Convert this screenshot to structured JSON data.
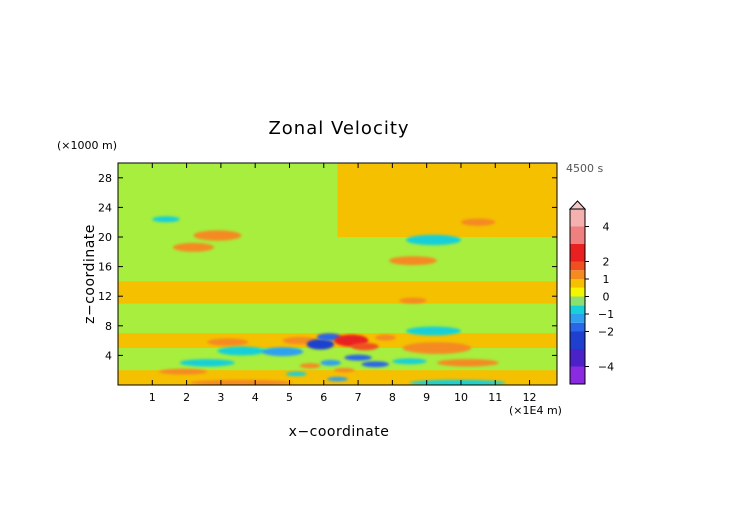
{
  "chart_data": {
    "type": "heatmap",
    "title": "Zonal Velocity",
    "xlabel": "x−coordinate",
    "ylabel": "z−coordinate",
    "x_unit_label": "(×1E4 m)",
    "y_unit_label": "(×1000 m)",
    "time_label": "4500 s",
    "xlim": [
      0,
      12.8
    ],
    "ylim": [
      0,
      30
    ],
    "x_ticks": [
      1,
      2,
      3,
      4,
      5,
      6,
      7,
      8,
      9,
      10,
      11,
      12
    ],
    "y_ticks": [
      4,
      8,
      12,
      16,
      20,
      24,
      28
    ],
    "grid": false,
    "legend_placement": "right",
    "colorbar": {
      "tick_labels": [
        "4",
        "2",
        "1",
        "0",
        "−1",
        "−2",
        "−4"
      ],
      "tick_values": [
        4,
        2,
        1,
        0,
        -1,
        -2,
        -4
      ],
      "levels": [
        -5,
        -4,
        -3,
        -2,
        -1.5,
        -1,
        -0.5,
        0,
        0.5,
        1,
        1.5,
        2,
        3,
        4,
        5
      ],
      "colors": [
        "#8a2be2",
        "#4b22c8",
        "#1f3fd0",
        "#2a66e8",
        "#2fa0f0",
        "#18d0d8",
        "#8ce070",
        "#f5f500",
        "#f5c000",
        "#f58a20",
        "#f05020",
        "#e82020",
        "#f08080",
        "#f5b0b0"
      ]
    },
    "background_level": 0.2,
    "background_color": "#a7ee3e",
    "features": [
      {
        "kind": "band",
        "x": [
          0,
          12.8
        ],
        "y": [
          0,
          2
        ],
        "value": 0.6
      },
      {
        "kind": "band",
        "x": [
          0,
          12.8
        ],
        "y": [
          11,
          14
        ],
        "value": 0.6
      },
      {
        "kind": "band",
        "x": [
          0,
          12.8
        ],
        "y": [
          5,
          7
        ],
        "value": 0.6
      },
      {
        "kind": "region",
        "x": [
          6.4,
          12.8
        ],
        "y": [
          20,
          30
        ],
        "value": 0.6
      },
      {
        "kind": "blob",
        "cx": 1.9,
        "cz": 1.8,
        "rx": 0.7,
        "rz": 0.4,
        "value": 1.2
      },
      {
        "kind": "blob",
        "cx": 3.6,
        "cz": 0.3,
        "rx": 1.5,
        "rz": 0.4,
        "value": 1.0
      },
      {
        "kind": "blob",
        "cx": 9.9,
        "cz": 0.3,
        "rx": 1.4,
        "rz": 0.4,
        "value": -0.8
      },
      {
        "kind": "blob",
        "cx": 2.6,
        "cz": 3.0,
        "rx": 0.8,
        "rz": 0.5,
        "value": -0.9
      },
      {
        "kind": "blob",
        "cx": 3.2,
        "cz": 5.8,
        "rx": 0.6,
        "rz": 0.5,
        "value": 1.0
      },
      {
        "kind": "blob",
        "cx": 3.6,
        "cz": 4.6,
        "rx": 0.7,
        "rz": 0.6,
        "value": -1.0
      },
      {
        "kind": "blob",
        "cx": 2.2,
        "cz": 18.6,
        "rx": 0.6,
        "rz": 0.6,
        "value": 1.0
      },
      {
        "kind": "blob",
        "cx": 2.9,
        "cz": 20.2,
        "rx": 0.7,
        "rz": 0.7,
        "value": 1.0
      },
      {
        "kind": "blob",
        "cx": 1.4,
        "cz": 22.4,
        "rx": 0.4,
        "rz": 0.4,
        "value": -0.8
      },
      {
        "kind": "blob",
        "cx": 10.5,
        "cz": 22.0,
        "rx": 0.5,
        "rz": 0.5,
        "value": 1.0
      },
      {
        "kind": "blob",
        "cx": 9.2,
        "cz": 19.6,
        "rx": 0.8,
        "rz": 0.7,
        "value": -0.8
      },
      {
        "kind": "blob",
        "cx": 8.6,
        "cz": 16.8,
        "rx": 0.7,
        "rz": 0.6,
        "value": 1.0
      },
      {
        "kind": "blob",
        "cx": 8.6,
        "cz": 11.4,
        "rx": 0.4,
        "rz": 0.4,
        "value": 1.0
      },
      {
        "kind": "blob",
        "cx": 9.2,
        "cz": 7.3,
        "rx": 0.8,
        "rz": 0.6,
        "value": -1.0
      },
      {
        "kind": "blob",
        "cx": 9.3,
        "cz": 5.0,
        "rx": 1.0,
        "rz": 0.8,
        "value": 1.1
      },
      {
        "kind": "blob",
        "cx": 10.2,
        "cz": 3.0,
        "rx": 0.9,
        "rz": 0.5,
        "value": 1.0
      },
      {
        "kind": "blob",
        "cx": 8.5,
        "cz": 3.2,
        "rx": 0.5,
        "rz": 0.4,
        "value": -0.8
      },
      {
        "kind": "blob",
        "cx": 4.8,
        "cz": 4.5,
        "rx": 0.6,
        "rz": 0.6,
        "value": -1.2
      },
      {
        "kind": "blob",
        "cx": 5.3,
        "cz": 6.0,
        "rx": 0.5,
        "rz": 0.5,
        "value": 1.2
      },
      {
        "kind": "blob",
        "cx": 5.9,
        "cz": 5.5,
        "rx": 0.4,
        "rz": 0.7,
        "value": -2.2
      },
      {
        "kind": "blob",
        "cx": 6.15,
        "cz": 6.5,
        "rx": 0.35,
        "rz": 0.5,
        "value": -1.6
      },
      {
        "kind": "blob",
        "cx": 6.8,
        "cz": 6.0,
        "rx": 0.5,
        "rz": 0.8,
        "value": 2.2
      },
      {
        "kind": "blob",
        "cx": 7.2,
        "cz": 5.2,
        "rx": 0.4,
        "rz": 0.5,
        "value": 1.5
      },
      {
        "kind": "blob",
        "cx": 7.0,
        "cz": 3.7,
        "rx": 0.4,
        "rz": 0.4,
        "value": -2.0
      },
      {
        "kind": "blob",
        "cx": 7.5,
        "cz": 2.8,
        "rx": 0.4,
        "rz": 0.4,
        "value": -2.0
      },
      {
        "kind": "blob",
        "cx": 5.6,
        "cz": 2.6,
        "rx": 0.3,
        "rz": 0.35,
        "value": 1.4
      },
      {
        "kind": "blob",
        "cx": 6.2,
        "cz": 3.0,
        "rx": 0.3,
        "rz": 0.4,
        "value": -1.3
      },
      {
        "kind": "blob",
        "cx": 6.6,
        "cz": 2.0,
        "rx": 0.3,
        "rz": 0.3,
        "value": 1.3
      },
      {
        "kind": "blob",
        "cx": 5.2,
        "cz": 1.5,
        "rx": 0.3,
        "rz": 0.3,
        "value": -1.0
      },
      {
        "kind": "blob",
        "cx": 7.8,
        "cz": 6.4,
        "rx": 0.3,
        "rz": 0.4,
        "value": 1.3
      },
      {
        "kind": "blob",
        "cx": 6.4,
        "cz": 0.8,
        "rx": 0.3,
        "rz": 0.3,
        "value": -1.2
      }
    ]
  }
}
